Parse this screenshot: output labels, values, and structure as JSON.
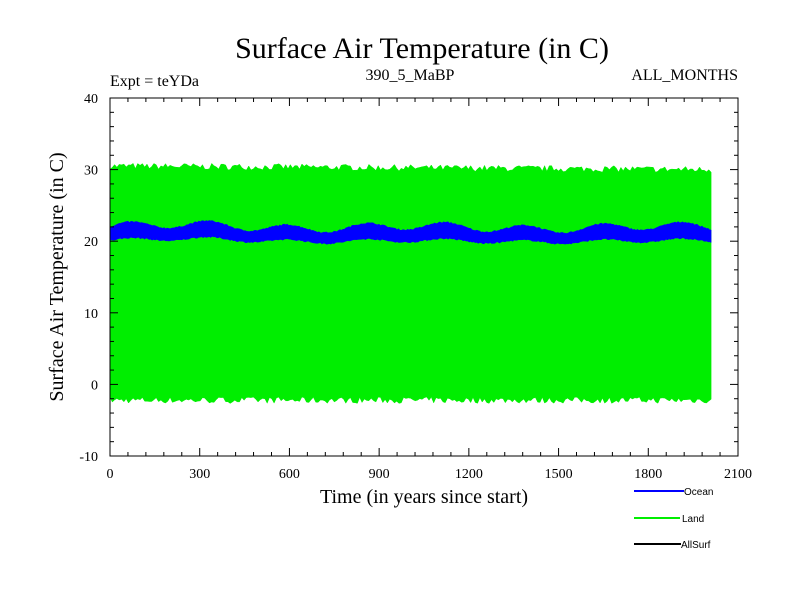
{
  "chart_data": {
    "type": "area",
    "title": "Surface Air Temperature (in C)",
    "subtitle_left": "Expt = teYDa",
    "subtitle_center": "390_5_MaBP",
    "subtitle_right": "ALL_MONTHS",
    "xlabel": "Time (in years since start)",
    "ylabel": "Surface Air Temperature (in C)",
    "xlim": [
      0,
      2100
    ],
    "ylim": [
      -10,
      40
    ],
    "x_ticks": [
      "0",
      "300",
      "600",
      "900",
      "1200",
      "1500",
      "1800",
      "2100"
    ],
    "y_ticks": [
      "-10",
      "0",
      "10",
      "20",
      "30",
      "40"
    ],
    "x_ticks_values": [
      0,
      300,
      600,
      900,
      1200,
      1500,
      1800,
      2100
    ],
    "y_ticks_values": [
      -10,
      0,
      10,
      20,
      30,
      40
    ],
    "x_range_data": [
      0,
      2010
    ],
    "legend_position": "bottom-right",
    "series": [
      {
        "name": "Land",
        "color": "#00ee00",
        "min_approx": -2.0,
        "max_approx": 30.5,
        "mean_approx": 14
      },
      {
        "name": "Ocean",
        "color": "#0000ff",
        "min_approx": 19.8,
        "max_approx": 22.2,
        "mean_approx": 21
      },
      {
        "name": "AllSurf",
        "color": "#000000"
      }
    ]
  }
}
